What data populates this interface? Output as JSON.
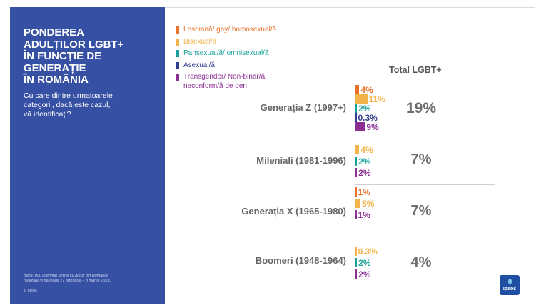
{
  "panel": {
    "title": "PONDEREA\nADULȚILOR LGBT+\nÎN FUNCȚIE DE\nGENERAȚIE\nÎN ROMÂNIA",
    "question": "Cu care dintre urmatoarele\ncategorii, dacă este cazul,\nvă identificați?",
    "note": "Baza: 000 interviuri online cu adulți din România,\nrealizate în perioada 17 februarie – 3 martie 2023.",
    "copyright": "© Ipsos"
  },
  "logo": {
    "text": "Ipsos"
  },
  "colors": {
    "lesbian_gay": "#e8712a",
    "bisexual": "#f2b44a",
    "pansexual": "#1aa39a",
    "asexual": "#2f3c8e",
    "transgender": "#8b2f93",
    "panel": "#3650a4"
  },
  "chart_data": {
    "type": "bar",
    "title": "Total LGBT+",
    "legend": [
      {
        "key": "lesbian_gay",
        "label": "Lesbiană/ gay/ homosexual/ă"
      },
      {
        "key": "bisexual",
        "label": "Bisexual/ă"
      },
      {
        "key": "pansexual",
        "label": "Pansexual/ă/ omnisexual/ă"
      },
      {
        "key": "asexual",
        "label": "Asexual/ă"
      },
      {
        "key": "transgender",
        "label": "Transgender/ Non-binar/ă,\nneconform/ă de gen"
      }
    ],
    "categories": [
      "Generația Z (1997+)",
      "Mileniali (1981-1996)",
      "Generația X (1965-1980)",
      "Boomeri (1948-1964)"
    ],
    "totals": [
      "19%",
      "7%",
      "7%",
      "4%"
    ],
    "series": [
      {
        "name": "Lesbiană/ gay/ homosexual/ă",
        "key": "lesbian_gay",
        "values": [
          4,
          null,
          1,
          null
        ],
        "labels": [
          "4%",
          "",
          "1%",
          ""
        ]
      },
      {
        "name": "Bisexual/ă",
        "key": "bisexual",
        "values": [
          11,
          4,
          5,
          0.3
        ],
        "labels": [
          "11%",
          "4%",
          "5%",
          "0.3%"
        ]
      },
      {
        "name": "Pansexual/ă/ omnisexual/ă",
        "key": "pansexual",
        "values": [
          2,
          2,
          null,
          2
        ],
        "labels": [
          "2%",
          "2%",
          "",
          "2%"
        ]
      },
      {
        "name": "Asexual/ă",
        "key": "asexual",
        "values": [
          0.3,
          null,
          null,
          null
        ],
        "labels": [
          "0.3%",
          "",
          "",
          ""
        ]
      },
      {
        "name": "Transgender/ Non-binar/ă, neconform/ă de gen",
        "key": "transgender",
        "values": [
          9,
          2,
          1,
          2
        ],
        "labels": [
          "9%",
          "2%",
          "1%",
          "2%"
        ]
      }
    ]
  }
}
